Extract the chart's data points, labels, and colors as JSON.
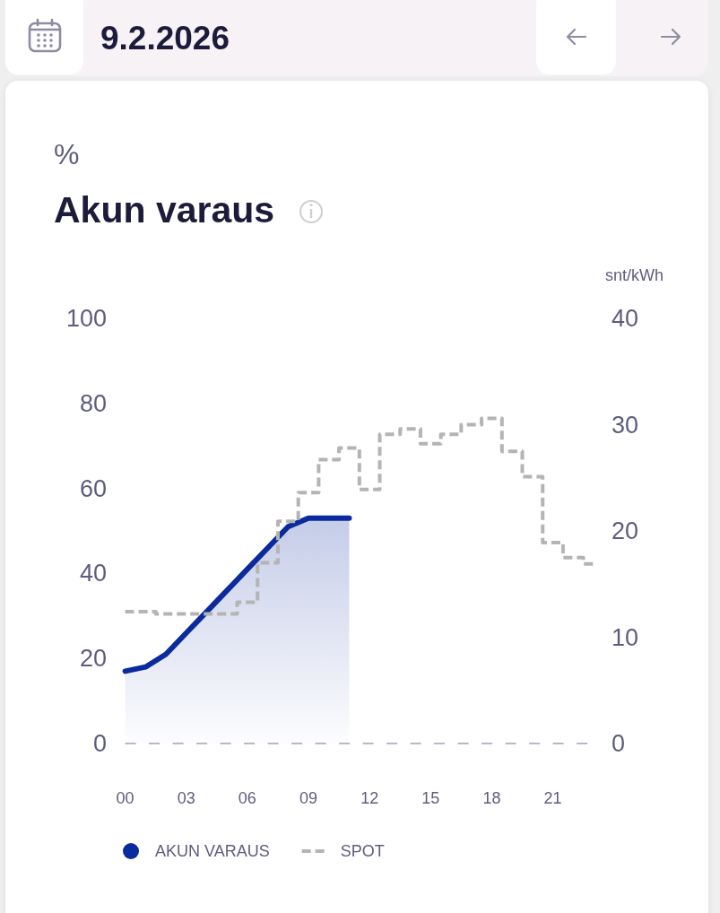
{
  "chart_data": {
    "type": "area",
    "title": "Akun varaus",
    "subtitle": "9.2.2026",
    "ylabel": "%",
    "y2label": "snt/kWh",
    "x": [
      0,
      1,
      2,
      3,
      4,
      5,
      6,
      7,
      8,
      9,
      10,
      11,
      12,
      13,
      14,
      15,
      16,
      17,
      18,
      19,
      20,
      21,
      22,
      23
    ],
    "xlim": [
      0,
      23
    ],
    "xticks": [
      {
        "value": 0,
        "label": "00"
      },
      {
        "value": 3,
        "label": "03"
      },
      {
        "value": 6,
        "label": "06"
      },
      {
        "value": 9,
        "label": "09"
      },
      12,
      15,
      18,
      21
    ],
    "ylim": [
      0,
      100
    ],
    "yticks": [
      0,
      20,
      40,
      60,
      80,
      100
    ],
    "y2lim": [
      0,
      40
    ],
    "y2ticks": [
      0,
      10,
      20,
      30,
      40
    ],
    "legend": "bottom",
    "series": [
      {
        "name": "AKUN VARAUS",
        "color": "#0b2a9e",
        "values": [
          17,
          18,
          21,
          26,
          31,
          36,
          41,
          46,
          51,
          53,
          53,
          53,
          null,
          null,
          null,
          null,
          null,
          null,
          null,
          null,
          null,
          null,
          null,
          null
        ]
      },
      {
        "name": "SPOT",
        "type": "step",
        "axis": "y2",
        "color": "#b4b4b4",
        "line_style": "dashed",
        "values": [
          12.4,
          12.4,
          12.2,
          12.2,
          12.2,
          12.2,
          13.3,
          17.0,
          20.9,
          23.6,
          26.7,
          27.8,
          23.9,
          29.1,
          29.6,
          28.2,
          29.1,
          30.0,
          30.6,
          27.5,
          25.1,
          18.9,
          17.5,
          16.9
        ]
      }
    ]
  }
}
